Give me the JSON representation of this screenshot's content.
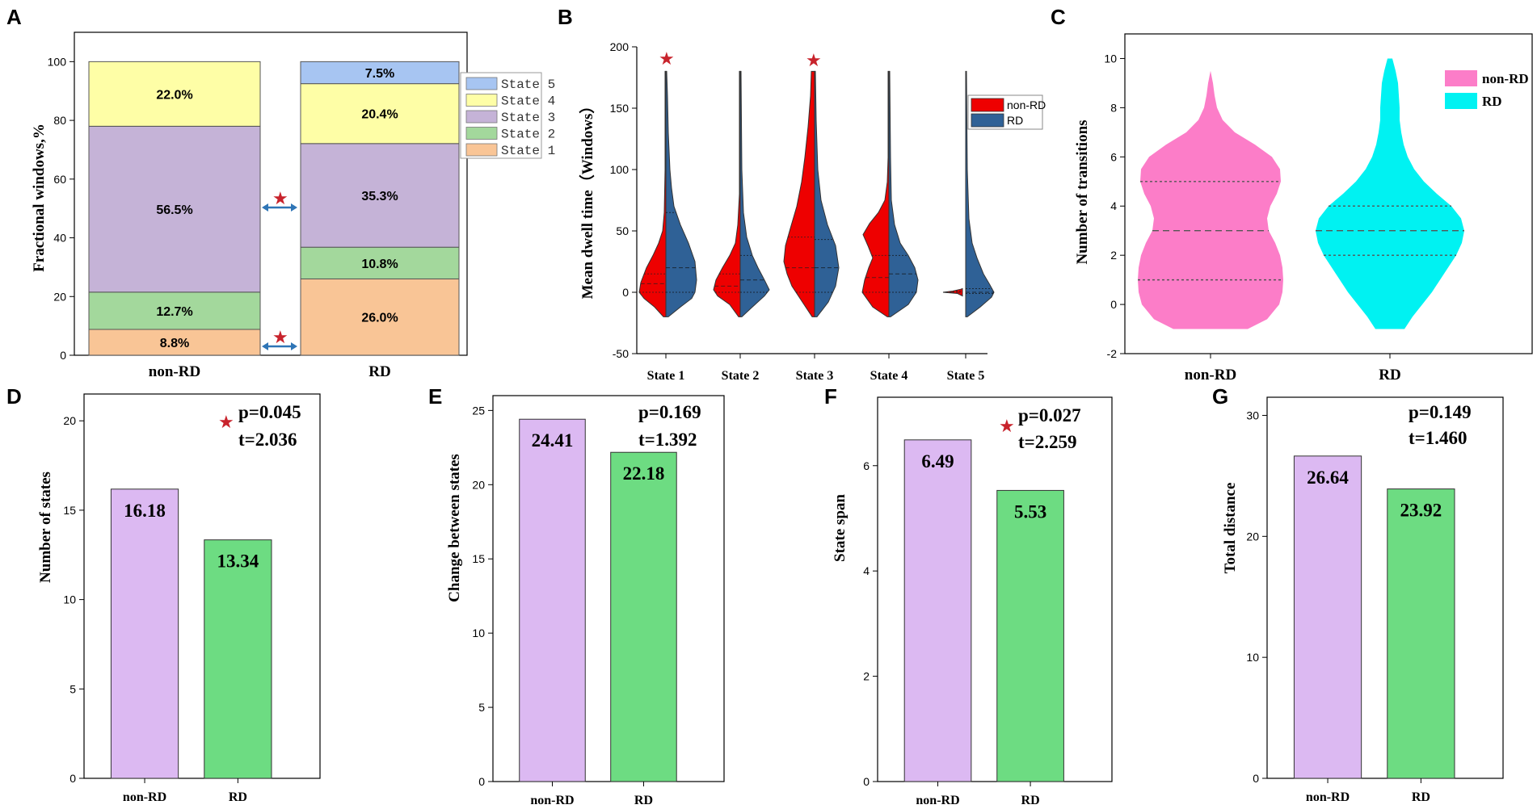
{
  "panels": {
    "A": "A",
    "B": "B",
    "C": "C",
    "D": "D",
    "E": "E",
    "F": "F",
    "G": "G"
  },
  "star_glyph": "★",
  "colors": {
    "state1": "#f9c596",
    "state2": "#a3d89c",
    "state3": "#c5b3d7",
    "state4": "#fefea6",
    "state5": "#a7c5f2",
    "nonrd_red": "#ee0000",
    "rd_blue": "#2f6196",
    "nonrd_pink": "#fc7dc8",
    "rd_cyan": "#00f2f2",
    "bar_purple": "#dcb9f2",
    "bar_green": "#6ddc82",
    "arrow": "#2e75b6",
    "star": "#c8232c"
  },
  "chart_data": [
    {
      "panel": "A",
      "type": "bar",
      "stacked": true,
      "categories": [
        "non-RD",
        "RD"
      ],
      "ylabel": "Fractional windows,%",
      "ylim": [
        0,
        110
      ],
      "yticks": [
        "0",
        "20",
        "40",
        "60",
        "80",
        "100"
      ],
      "series": [
        {
          "name": "State 1",
          "values": [
            8.8,
            26.0
          ],
          "labels": [
            "8.8%",
            "26.0%"
          ]
        },
        {
          "name": "State 2",
          "values": [
            12.7,
            10.8
          ],
          "labels": [
            "12.7%",
            "10.8%"
          ]
        },
        {
          "name": "State 3",
          "values": [
            56.5,
            35.3
          ],
          "labels": [
            "56.5%",
            "35.3%"
          ]
        },
        {
          "name": "State 4",
          "values": [
            22.0,
            20.4
          ],
          "labels": [
            "22.0%",
            "20.4%"
          ]
        },
        {
          "name": "State 5",
          "values": [
            0.0,
            7.5
          ],
          "labels": [
            "",
            "7.5%"
          ]
        }
      ],
      "legend": [
        "State 5",
        "State 4",
        "State 3",
        "State 2",
        "State 1"
      ],
      "significant": [
        "State 1",
        "State 3"
      ]
    },
    {
      "panel": "B",
      "type": "violin",
      "categories": [
        "State 1",
        "State 2",
        "State 3",
        "State 4",
        "State 5"
      ],
      "ylabel": "Mean dwell time（Windows）",
      "ylim": [
        -50,
        200
      ],
      "yticks": [
        "-50",
        "0",
        "50",
        "100",
        "150",
        "200"
      ],
      "series": [
        {
          "name": "non-RD",
          "median": [
            7,
            5,
            20,
            12,
            0
          ],
          "q1": [
            0,
            0,
            0,
            0,
            0
          ],
          "q3": [
            15,
            15,
            45,
            30,
            1
          ],
          "range": [
            [
              -20,
              180
            ],
            [
              -20,
              180
            ],
            [
              -20,
              180
            ],
            [
              -20,
              180
            ],
            [
              -2,
              3
            ]
          ]
        },
        {
          "name": "RD",
          "median": [
            20,
            10,
            20,
            15,
            0
          ],
          "q1": [
            0,
            0,
            0,
            0,
            -1
          ],
          "q3": [
            65,
            30,
            43,
            30,
            3
          ],
          "range": [
            [
              -20,
              180
            ],
            [
              -20,
              180
            ],
            [
              -20,
              180
            ],
            [
              -20,
              180
            ],
            [
              -20,
              180
            ]
          ]
        }
      ],
      "legend": [
        "non-RD",
        "RD"
      ],
      "significant": [
        "State 1",
        "State 3"
      ]
    },
    {
      "panel": "C",
      "type": "violin",
      "categories": [
        "non-RD",
        "RD"
      ],
      "ylabel": "Number of transitions",
      "ylim": [
        -2,
        11
      ],
      "yticks": [
        "-2",
        "0",
        "2",
        "4",
        "6",
        "8",
        "10"
      ],
      "series": [
        {
          "name": "non-RD",
          "q1": 1,
          "median": 3,
          "q3": 5,
          "range": [
            -1,
            9.5
          ]
        },
        {
          "name": "RD",
          "q1": 2,
          "median": 3,
          "q3": 4,
          "range": [
            -1,
            10
          ]
        }
      ],
      "legend": [
        "non-RD",
        "RD"
      ]
    },
    {
      "panel": "D",
      "type": "bar",
      "categories": [
        "non-RD",
        "RD"
      ],
      "values": [
        16.18,
        13.34
      ],
      "labels": [
        "16.18",
        "13.34"
      ],
      "ylabel": "Number of states",
      "ylim": [
        0,
        21.5
      ],
      "yticks": [
        "0",
        "5",
        "10",
        "15",
        "20"
      ],
      "p": "p=0.045",
      "t": "t=2.036",
      "significant": true
    },
    {
      "panel": "E",
      "type": "bar",
      "categories": [
        "non-RD",
        "RD"
      ],
      "values": [
        24.41,
        22.18
      ],
      "labels": [
        "24.41",
        "22.18"
      ],
      "ylabel": "Change between states",
      "ylim": [
        0,
        26
      ],
      "yticks": [
        "0",
        "5",
        "10",
        "15",
        "20",
        "25"
      ],
      "p": "p=0.169",
      "t": "t=1.392",
      "significant": false
    },
    {
      "panel": "F",
      "type": "bar",
      "categories": [
        "non-RD",
        "RD"
      ],
      "values": [
        6.49,
        5.53
      ],
      "labels": [
        "6.49",
        "5.53"
      ],
      "ylabel": "State span",
      "ylim": [
        0,
        7.3
      ],
      "yticks": [
        "0",
        "2",
        "4",
        "6"
      ],
      "p": "p=0.027",
      "t": "t=2.259",
      "significant": true
    },
    {
      "panel": "G",
      "type": "bar",
      "categories": [
        "non-RD",
        "RD"
      ],
      "values": [
        26.64,
        23.92
      ],
      "labels": [
        "26.64",
        "23.92"
      ],
      "ylabel": "Total distance",
      "ylim": [
        0,
        31.5
      ],
      "yticks": [
        "0",
        "10",
        "20",
        "30"
      ],
      "p": "p=0.149",
      "t": "t=1.460",
      "significant": false
    }
  ]
}
